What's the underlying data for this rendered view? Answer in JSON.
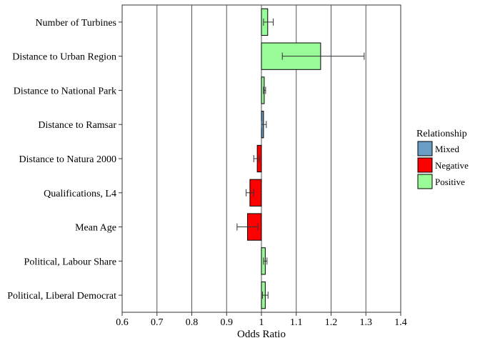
{
  "chart_data": {
    "type": "bar",
    "orientation": "horizontal",
    "xlabel": "Odds Ratio",
    "ylabel": "",
    "xlim": [
      0.6,
      1.4
    ],
    "xticks": [
      0.6,
      0.7,
      0.8,
      0.9,
      1.0,
      1.1,
      1.2,
      1.3,
      1.4
    ],
    "xtick_labels": [
      "0.6",
      "0.7",
      "0.8",
      "0.9",
      "1",
      "1.1",
      "1.2",
      "1.3",
      "1.4"
    ],
    "baseline": 1.0,
    "grid": "vertical",
    "categories": [
      "Number of Turbines",
      "Distance to  Urban Region",
      "Distance to National Park",
      "Distance to Ramsar",
      "Distance to Natura 2000",
      "Qualifications, L4",
      "Mean Age",
      "Political, Labour Share",
      "Political, Liberal Democrat"
    ],
    "values": [
      1.018,
      1.17,
      1.008,
      1.006,
      0.988,
      0.967,
      0.96,
      1.011,
      1.011
    ],
    "error_low": [
      1.006,
      1.06,
      1.006,
      1.0,
      0.978,
      0.956,
      0.93,
      1.006,
      1.003
    ],
    "error_high": [
      1.034,
      1.295,
      1.012,
      1.014,
      0.994,
      0.978,
      0.99,
      1.016,
      1.019
    ],
    "relationship": [
      "Positive",
      "Positive",
      "Positive",
      "Mixed",
      "Negative",
      "Negative",
      "Negative",
      "Positive",
      "Positive"
    ],
    "legend": {
      "title": "Relationship",
      "position": "right",
      "entries": [
        {
          "label": "Mixed",
          "color": "#6a9ec6"
        },
        {
          "label": "Negative",
          "color": "#ff0000"
        },
        {
          "label": "Positive",
          "color": "#98fb98"
        }
      ]
    }
  }
}
